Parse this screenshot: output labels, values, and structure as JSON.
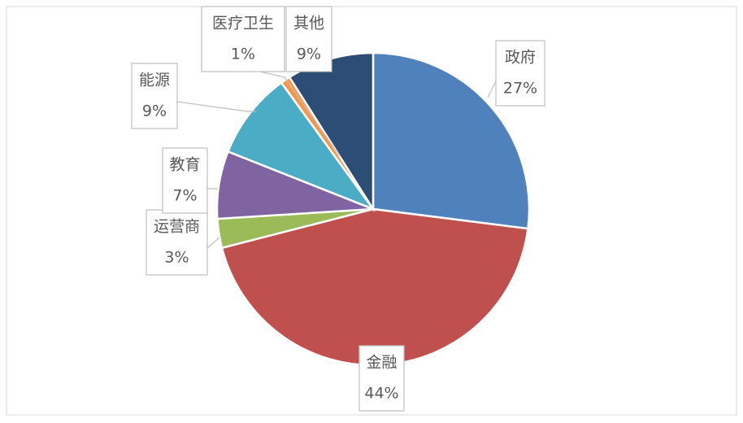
{
  "chart_data": {
    "type": "pie",
    "categories": [
      "政府",
      "金融",
      "运营商",
      "教育",
      "能源",
      "医疗卫生",
      "其他"
    ],
    "values": [
      27,
      44,
      3,
      7,
      9,
      1,
      9
    ],
    "value_labels": [
      "27%",
      "44%",
      "3%",
      "7%",
      "9%",
      "1%",
      "9%"
    ],
    "colors": [
      "#4f81bd",
      "#c0504d",
      "#9bbb59",
      "#8064a2",
      "#4bacc6",
      "#f79646",
      "#2c4d75"
    ]
  }
}
